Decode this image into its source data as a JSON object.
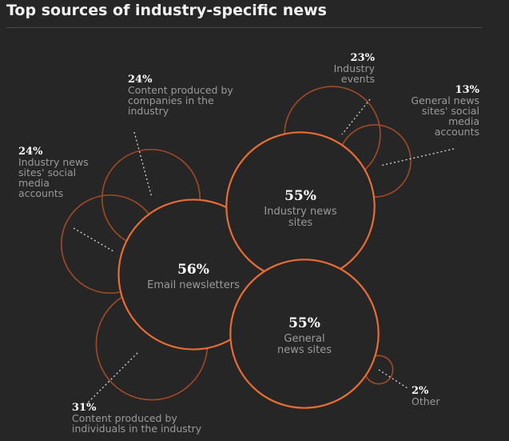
{
  "title": "Top sources of industry-specific news",
  "colors": {
    "background": "#262626",
    "major_circle": "#e76d35",
    "minor_circle": "#a14a27",
    "label_text": "#9a9a9a",
    "value_text": "#ffffff"
  },
  "chart_data": {
    "type": "bubble",
    "title": "Top sources of industry-specific news",
    "unit": "%",
    "series": [
      {
        "name": "Email newsletters",
        "value": 56,
        "label": "56%",
        "label_lines": [
          "Email newsletters"
        ]
      },
      {
        "name": "Industry news sites",
        "value": 55,
        "label": "55%",
        "label_lines": [
          "Industry news",
          "sites"
        ]
      },
      {
        "name": "General news sites",
        "value": 55,
        "label": "55%",
        "label_lines": [
          "General",
          "news sites"
        ]
      },
      {
        "name": "Content produced by individuals in the industry",
        "value": 31,
        "label": "31%",
        "label_lines": [
          "Content produced by",
          "individuals in the industry"
        ]
      },
      {
        "name": "Content produced by companies in the industry",
        "value": 24,
        "label": "24%",
        "label_lines": [
          "Content produced by",
          "companies in the",
          "industry"
        ]
      },
      {
        "name": "Industry news sites' social media accounts",
        "value": 24,
        "label": "24%",
        "label_lines": [
          "Industry news",
          "sites' social",
          "media",
          "accounts"
        ]
      },
      {
        "name": "Industry events",
        "value": 23,
        "label": "23%",
        "label_lines": [
          "Industry",
          "events"
        ]
      },
      {
        "name": "General news sites' social media accounts",
        "value": 13,
        "label": "13%",
        "label_lines": [
          "General news",
          "sites' social",
          "media",
          "accounts"
        ]
      },
      {
        "name": "Other",
        "value": 2,
        "label": "2%",
        "label_lines": [
          "Other"
        ]
      }
    ]
  }
}
